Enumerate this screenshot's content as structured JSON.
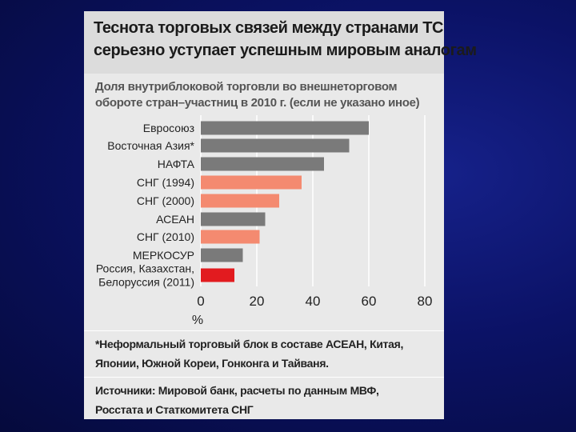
{
  "header": {
    "title_line1": "Теснота торговых связей между странами ТС",
    "title_line2": "серьезно уступает успешным мировым аналогам"
  },
  "subtitle": {
    "line1": "Доля внутриблоковой торговли во внешнеторговом",
    "line2": "обороте стран–участниц в 2010 г. (если не указано иное)"
  },
  "footnote": {
    "line1": "*Неформальный торговый блок в составе АСЕАН, Китая,",
    "line2": "Японии, Южной Кореи, Гонконга и Тайваня."
  },
  "sources": {
    "line1": "Источники: Мировой банк, расчеты по данным МВФ,",
    "line2": "Росстата и Статкомитета СНГ"
  },
  "colors": {
    "gray": "#7a7a7a",
    "salmon": "#f48a70",
    "red": "#e21b1f"
  },
  "chart_data": {
    "type": "bar",
    "orientation": "horizontal",
    "categories": [
      [
        "Евросоюз"
      ],
      [
        "Восточная Азия*"
      ],
      [
        "НАФТА"
      ],
      [
        "СНГ (1994)"
      ],
      [
        "СНГ (2000)"
      ],
      [
        "АСЕАН"
      ],
      [
        "СНГ (2010)"
      ],
      [
        "МЕРКОСУР"
      ],
      [
        "Россия, Казахстан,",
        "Белоруссия (2011)"
      ]
    ],
    "values": [
      60,
      53,
      44,
      36,
      28,
      23,
      21,
      15,
      12
    ],
    "bar_colors": [
      "gray",
      "gray",
      "gray",
      "salmon",
      "salmon",
      "gray",
      "salmon",
      "gray",
      "red"
    ],
    "xlim": [
      0,
      80
    ],
    "xticks": [
      0,
      20,
      40,
      60,
      80
    ],
    "xlabel": "%",
    "grid": true
  }
}
